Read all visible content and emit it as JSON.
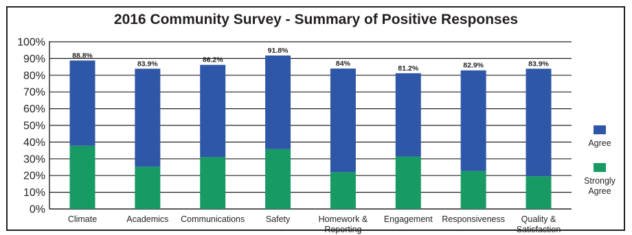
{
  "chart_data": {
    "type": "bar",
    "stacked": true,
    "title": "2016 Community Survey - Summary of Positive Responses",
    "xlabel": "",
    "ylabel": "",
    "ylim": [
      0,
      100
    ],
    "yticks": [
      "0%",
      "10%",
      "20%",
      "30%",
      "40%",
      "50%",
      "60%",
      "70%",
      "80%",
      "90%",
      "100%"
    ],
    "grid": true,
    "legend_position": "right",
    "categories": [
      [
        "Climate"
      ],
      [
        "Academics"
      ],
      [
        "Communications"
      ],
      [
        "Safety"
      ],
      [
        "Homework &",
        "Reporting"
      ],
      [
        "Engagement"
      ],
      [
        "Responsiveness"
      ],
      [
        "Quality &",
        "Satisfaction"
      ]
    ],
    "totals": [
      88.8,
      83.9,
      86.2,
      91.8,
      84,
      81.2,
      82.9,
      83.9
    ],
    "total_labels": [
      "88.8%",
      "83.9%",
      "86.2%",
      "91.8%",
      "84%",
      "81.2%",
      "82.9%",
      "83.9%"
    ],
    "series": [
      {
        "name": "Strongly Agree",
        "legend_lines": [
          "Strongly",
          "Agree"
        ],
        "color": "#179a63",
        "values": [
          37.8,
          25.3,
          31.0,
          35.8,
          22.0,
          31.3,
          22.7,
          19.6
        ]
      },
      {
        "name": "Agree",
        "legend_lines": [
          "Agree"
        ],
        "color": "#2f57a8",
        "values": [
          51.0,
          58.6,
          55.2,
          56.0,
          62.0,
          49.9,
          60.2,
          64.3
        ]
      }
    ]
  }
}
